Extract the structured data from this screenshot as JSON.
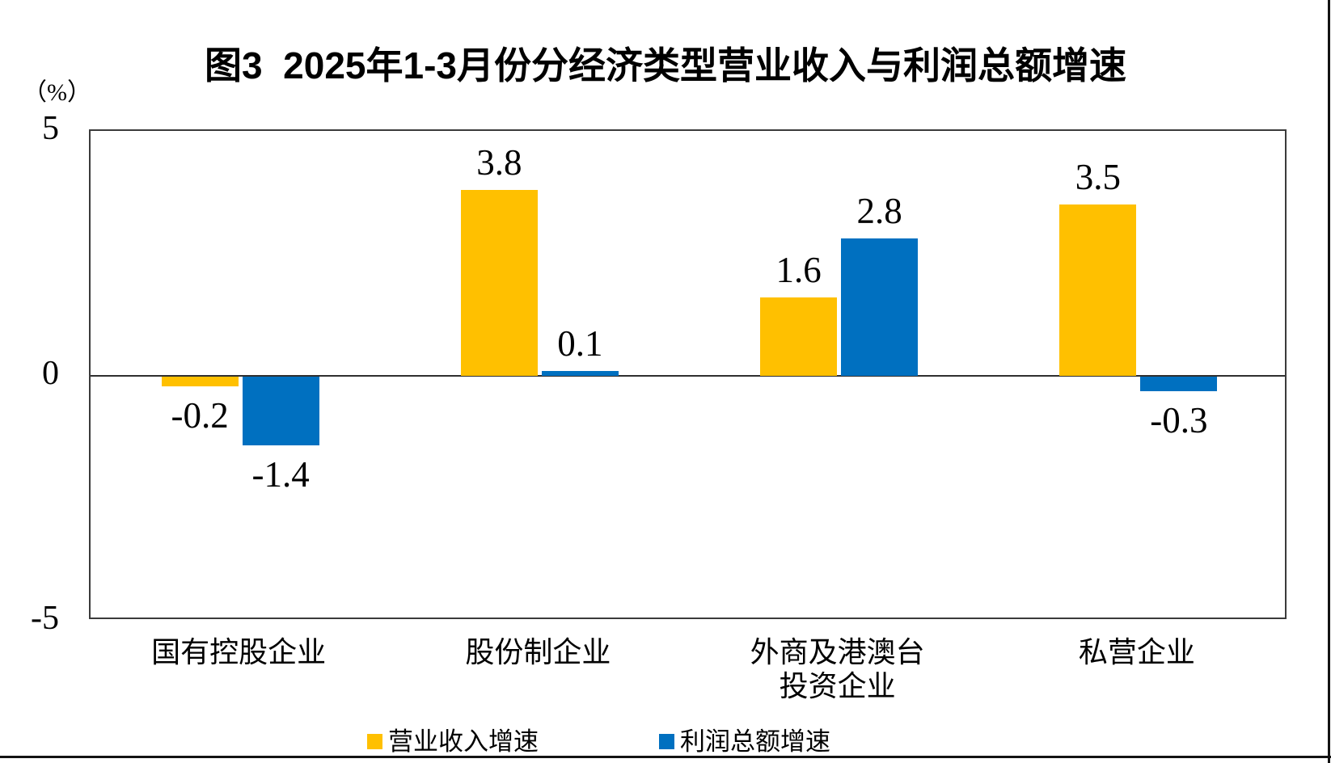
{
  "chart_data": {
    "type": "bar",
    "title": "图3  2025年1-3月份分经济类型营业收入与利润总额增速",
    "unit_label": "（%）",
    "categories": [
      "国有控股企业",
      "股份制企业",
      "外商及港澳台\n投资企业",
      "私营企业"
    ],
    "series": [
      {
        "name": "营业收入增速",
        "color": "#FFC000",
        "values": [
          -0.2,
          3.8,
          1.6,
          3.5
        ]
      },
      {
        "name": "利润总额增速",
        "color": "#0070C0",
        "values": [
          -1.4,
          0.1,
          2.8,
          -0.3
        ]
      }
    ],
    "value_labels": [
      "-0.2",
      "-1.4",
      "3.8",
      "0.1",
      "1.6",
      "2.8",
      "3.5",
      "-0.3"
    ],
    "ylim": [
      -5,
      5
    ],
    "yticks": [
      5,
      0,
      -5
    ],
    "grid": false,
    "legend_position": "bottom",
    "axis_frame_color": "#3b3b3b",
    "value_label_decimals": 1
  }
}
